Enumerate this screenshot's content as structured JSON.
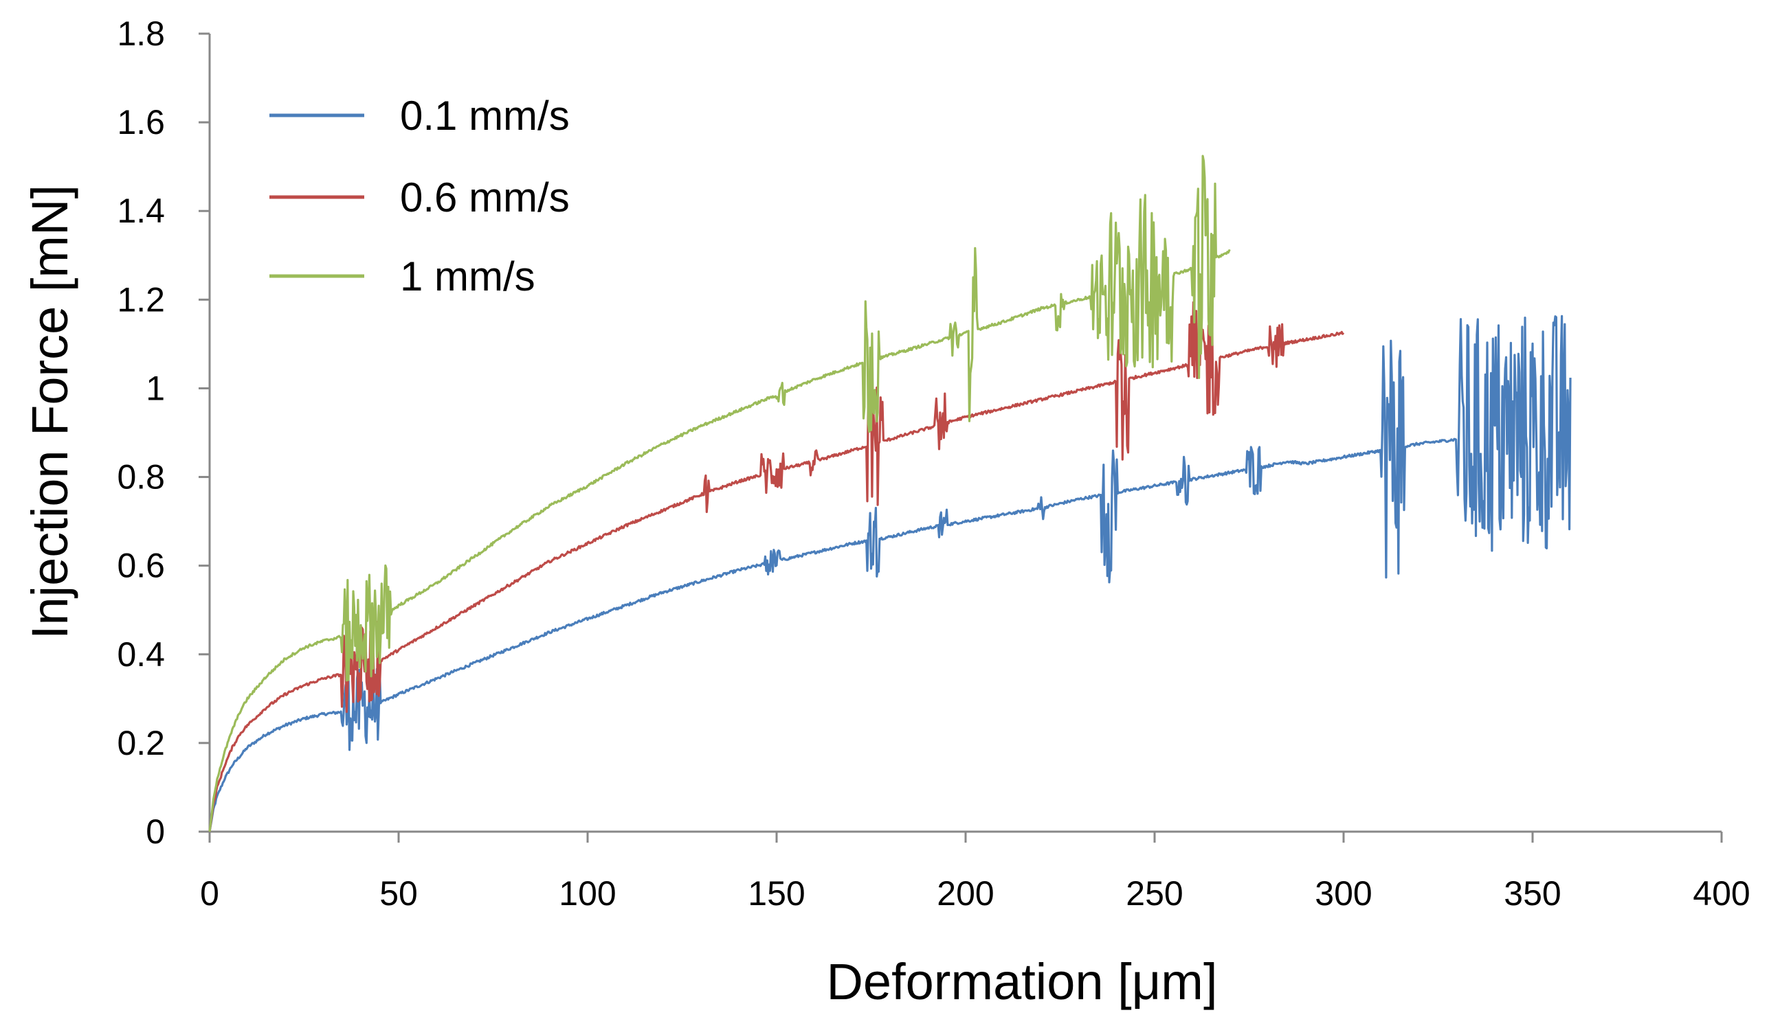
{
  "chart_data": {
    "type": "line",
    "title": "",
    "xlabel": "Deformation [μm]",
    "ylabel": "Injection Force [mN]",
    "xlim": [
      0,
      400
    ],
    "ylim": [
      0,
      1.8
    ],
    "xticks": [
      0,
      50,
      100,
      150,
      200,
      250,
      300,
      350,
      400
    ],
    "yticks": [
      0,
      0.2,
      0.4,
      0.6,
      0.8,
      1.0,
      1.2,
      1.4,
      1.6,
      1.8
    ],
    "xtick_labels": [
      "0",
      "50",
      "100",
      "150",
      "200",
      "250",
      "300",
      "350",
      "400"
    ],
    "ytick_labels": [
      "0",
      "0.2",
      "0.4",
      "0.6",
      "0.8",
      "1",
      "1.2",
      "1.4",
      "1.6",
      "1.8"
    ],
    "grid": false,
    "legend_position": "top-left",
    "series": [
      {
        "name": "0.1 mm/s",
        "color": "#4a7ebb",
        "x": [
          0,
          1,
          2,
          4,
          6,
          8,
          10,
          15,
          20,
          25,
          30,
          35,
          40,
          45,
          50,
          60,
          70,
          80,
          90,
          100,
          110,
          120,
          130,
          140,
          150,
          160,
          170,
          180,
          190,
          200,
          210,
          220,
          230,
          240,
          250,
          260,
          270,
          280,
          285,
          290,
          300,
          310,
          320,
          330,
          340,
          350,
          360
        ],
        "y": [
          0,
          0.05,
          0.08,
          0.12,
          0.15,
          0.17,
          0.19,
          0.22,
          0.24,
          0.255,
          0.265,
          0.27,
          0.28,
          0.29,
          0.31,
          0.345,
          0.38,
          0.415,
          0.45,
          0.48,
          0.51,
          0.54,
          0.565,
          0.59,
          0.61,
          0.63,
          0.65,
          0.665,
          0.685,
          0.7,
          0.715,
          0.73,
          0.75,
          0.765,
          0.78,
          0.795,
          0.81,
          0.825,
          0.835,
          0.83,
          0.845,
          0.86,
          0.875,
          0.885,
          0.89,
          0.9,
          0.9
        ],
        "noise": [
          {
            "x": [
              35,
              45
            ],
            "amp": 0.09
          },
          {
            "x": [
              147,
              151
            ],
            "amp": 0.03
          },
          {
            "x": [
              174,
              177
            ],
            "amp": 0.09
          },
          {
            "x": [
              193,
              195
            ],
            "amp": 0.04
          },
          {
            "x": [
              219,
              221
            ],
            "amp": 0.03
          },
          {
            "x": [
              236,
              240
            ],
            "amp": 0.2
          },
          {
            "x": [
              256,
              259
            ],
            "amp": 0.06
          },
          {
            "x": [
              274,
              278
            ],
            "amp": 0.06
          },
          {
            "x": [
              310,
              316
            ],
            "amp": 0.3
          },
          {
            "x": [
              330,
              360
            ],
            "amp": 0.28
          }
        ]
      },
      {
        "name": "0.6 mm/s",
        "color": "#be4b48",
        "x": [
          0,
          1,
          2,
          4,
          6,
          8,
          10,
          15,
          20,
          25,
          30,
          35,
          40,
          45,
          50,
          60,
          70,
          80,
          90,
          100,
          110,
          120,
          130,
          140,
          150,
          160,
          170,
          180,
          190,
          200,
          210,
          220,
          230,
          240,
          250,
          260,
          270,
          280,
          290,
          300
        ],
        "y": [
          0,
          0.06,
          0.1,
          0.15,
          0.19,
          0.22,
          0.24,
          0.28,
          0.31,
          0.33,
          0.345,
          0.355,
          0.37,
          0.385,
          0.41,
          0.46,
          0.51,
          0.56,
          0.61,
          0.65,
          0.69,
          0.725,
          0.76,
          0.79,
          0.815,
          0.835,
          0.86,
          0.885,
          0.91,
          0.935,
          0.955,
          0.975,
          0.995,
          1.015,
          1.035,
          1.055,
          1.075,
          1.095,
          1.11,
          1.125
        ],
        "noise": [
          {
            "x": [
              35,
              45
            ],
            "amp": 0.09
          },
          {
            "x": [
              131,
              132
            ],
            "amp": 0.06
          },
          {
            "x": [
              146,
              152
            ],
            "amp": 0.05
          },
          {
            "x": [
              159,
              161
            ],
            "amp": 0.03
          },
          {
            "x": [
              174,
              178
            ],
            "amp": 0.15
          },
          {
            "x": [
              192,
              195
            ],
            "amp": 0.07
          },
          {
            "x": [
              240,
              243
            ],
            "amp": 0.25
          },
          {
            "x": [
              259,
              267
            ],
            "amp": 0.14
          },
          {
            "x": [
              280,
              284
            ],
            "amp": 0.05
          }
        ]
      },
      {
        "name": "1 mm/s",
        "color": "#9bbb59",
        "x": [
          0,
          1,
          2,
          4,
          6,
          8,
          10,
          15,
          20,
          25,
          30,
          35,
          40,
          45,
          50,
          60,
          70,
          80,
          90,
          100,
          110,
          120,
          130,
          140,
          150,
          160,
          170,
          180,
          190,
          200,
          210,
          220,
          230,
          240,
          250,
          260,
          270
        ],
        "y": [
          0,
          0.07,
          0.12,
          0.18,
          0.23,
          0.27,
          0.3,
          0.35,
          0.39,
          0.415,
          0.43,
          0.44,
          0.46,
          0.48,
          0.51,
          0.56,
          0.62,
          0.68,
          0.735,
          0.78,
          0.83,
          0.875,
          0.915,
          0.95,
          0.985,
          1.02,
          1.05,
          1.075,
          1.1,
          1.125,
          1.15,
          1.18,
          1.2,
          1.22,
          1.245,
          1.27,
          1.31
        ],
        "noise": [
          {
            "x": [
              35,
              48
            ],
            "amp": 0.12
          },
          {
            "x": [
              150,
              152
            ],
            "amp": 0.03
          },
          {
            "x": [
              173,
              177
            ],
            "amp": 0.18
          },
          {
            "x": [
              196,
              198
            ],
            "amp": 0.05
          },
          {
            "x": [
              201,
              203
            ],
            "amp": 0.2
          },
          {
            "x": [
              224,
              226
            ],
            "amp": 0.06
          },
          {
            "x": [
              233,
              236
            ],
            "amp": 0.1
          },
          {
            "x": [
              237,
              255
            ],
            "amp": 0.2
          },
          {
            "x": [
              260,
              266
            ],
            "amp": 0.27
          }
        ]
      }
    ]
  }
}
